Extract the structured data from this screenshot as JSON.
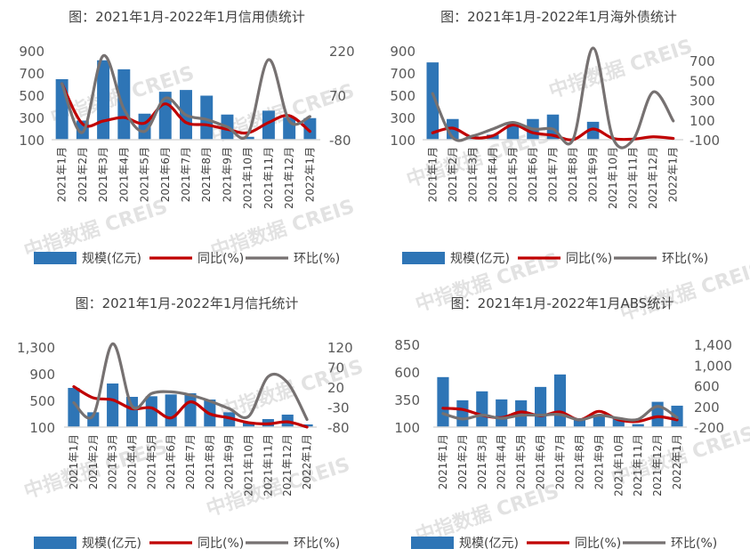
{
  "watermark": "中指数据 CREIS",
  "colors": {
    "bar": "#2e75b6",
    "yoy": "#c00000",
    "mom": "#767171",
    "axis": "#d9d9d9"
  },
  "legend": {
    "bar": "规模(亿元)",
    "yoy": "同比(%)",
    "mom": "环比(%)"
  },
  "chart_data": [
    {
      "type": "bar+line",
      "title": "图：2021年1月-2022年1月信用债统计",
      "categories": [
        "2021年1月",
        "2021年2月",
        "2021年3月",
        "2021年4月",
        "2021年5月",
        "2021年6月",
        "2021年7月",
        "2021年8月",
        "2021年9月",
        "2021年10月",
        "2021年11月",
        "2021年12月",
        "2022年1月"
      ],
      "left_axis": {
        "range": [
          100,
          900
        ],
        "ticks": [
          "100",
          "300",
          "500",
          "700",
          "900"
        ]
      },
      "right_axis": {
        "range": [
          -80,
          220
        ],
        "ticks": [
          "-80",
          "70",
          "220"
        ]
      },
      "series": [
        {
          "name": "规模(亿元)",
          "type": "bar",
          "axis": "left",
          "values": [
            644,
            272,
            814,
            733,
            334,
            531,
            547,
            496,
            326,
            126,
            361,
            299,
            294
          ]
        },
        {
          "name": "同比(%)",
          "type": "line",
          "axis": "right",
          "values": [
            109,
            -27,
            -17,
            -5,
            -24,
            41,
            -22,
            -30,
            -45,
            -57,
            -22,
            1,
            -52
          ]
        },
        {
          "name": "环比(%)",
          "type": "line",
          "axis": "right",
          "values": [
            109,
            -55,
            203,
            23,
            -52,
            60,
            3,
            -12,
            -37,
            -62,
            190,
            -17,
            -2
          ]
        }
      ]
    },
    {
      "type": "bar+line",
      "title": "图：2021年1月-2022年1月海外债统计",
      "categories": [
        "2021年1月",
        "2021年2月",
        "2021年3月",
        "2021年4月",
        "2021年5月",
        "2021年6月",
        "2021年7月",
        "2021年8月",
        "2021年9月",
        "2021年10月",
        "2021年11月",
        "2021年12月",
        "2022年1月"
      ],
      "left_axis": {
        "range": [
          100,
          900
        ],
        "ticks": [
          "100",
          "300",
          "500",
          "700",
          "900"
        ]
      },
      "right_axis": {
        "range": [
          -100,
          800
        ],
        "ticks": [
          "-100",
          "100",
          "300",
          "500",
          "700"
        ]
      },
      "series": [
        {
          "name": "规模(亿元)",
          "type": "bar",
          "axis": "left",
          "values": [
            795,
            286,
            130,
            145,
            253,
            286,
            326,
            100,
            261,
            100,
            100,
            100,
            100
          ]
        },
        {
          "name": "同比(%)",
          "type": "line",
          "axis": "right",
          "values": [
            -30,
            17,
            -78,
            -60,
            49,
            -30,
            -56,
            -100,
            8,
            -87,
            -94,
            -71,
            -87
          ]
        },
        {
          "name": "环比(%)",
          "type": "line",
          "axis": "right",
          "values": [
            367,
            -78,
            -62,
            8,
            75,
            8,
            8,
            -100,
            827,
            -87,
            -100,
            383,
            90
          ]
        }
      ]
    },
    {
      "type": "bar+line",
      "title": "图：2021年1月-2022年1月信托统计",
      "categories": [
        "2021年1月",
        "2021年2月",
        "2021年3月",
        "2021年4月",
        "2021年5月",
        "2021年6月",
        "2021年7月",
        "2021年8月",
        "2021年9月",
        "2021年10月",
        "2021年11月",
        "2021年12月",
        "2022年1月"
      ],
      "left_axis": {
        "range": [
          100,
          1300
        ],
        "ticks": [
          "100",
          "500",
          "900",
          "1,300"
        ]
      },
      "right_axis": {
        "range": [
          -80,
          120
        ],
        "ticks": [
          "-80",
          "-30",
          "20",
          "70",
          "120"
        ]
      },
      "series": [
        {
          "name": "规模(亿元)",
          "type": "bar",
          "axis": "left",
          "values": [
            687,
            322,
            753,
            553,
            562,
            589,
            607,
            513,
            322,
            167,
            220,
            287,
            140
          ]
        },
        {
          "name": "同比(%)",
          "type": "line",
          "axis": "right",
          "values": [
            21,
            -7,
            -12,
            -34,
            -32,
            -57,
            -17,
            -47,
            -57,
            -69,
            -72,
            -67,
            -80
          ]
        },
        {
          "name": "环比(%)",
          "type": "line",
          "axis": "right",
          "values": [
            -19,
            -51,
            128,
            -28,
            4,
            8,
            0,
            -15,
            -34,
            -53,
            46,
            31,
            -61
          ]
        }
      ]
    },
    {
      "type": "bar+line",
      "title": "图：2021年1月-2022年1月ABS统计",
      "categories": [
        "2021年1月",
        "2021年2月",
        "2021年3月",
        "2021年4月",
        "2021年5月",
        "2021年6月",
        "2021年7月",
        "2021年8月",
        "2021年9月",
        "2021年10月",
        "2021年11月",
        "2021年12月",
        "2022年1月"
      ],
      "left_axis": {
        "range": [
          100,
          850
        ],
        "ticks": [
          "100",
          "350",
          "600",
          "850"
        ]
      },
      "right_axis": {
        "range": [
          -200,
          1400
        ],
        "ticks": [
          "-200",
          "200",
          "600",
          "1,000",
          "1,400"
        ]
      },
      "series": [
        {
          "name": "规模(亿元)",
          "type": "bar",
          "axis": "left",
          "values": [
            553,
            343,
            424,
            351,
            343,
            464,
            577,
            181,
            208,
            181,
            127,
            329,
            294
          ]
        },
        {
          "name": "同比(%)",
          "type": "line",
          "axis": "right",
          "values": [
            165,
            140,
            30,
            -17,
            92,
            19,
            92,
            -60,
            104,
            -60,
            -90,
            0,
            -60
          ]
        },
        {
          "name": "环比(%)",
          "type": "line",
          "axis": "right",
          "values": [
            62,
            -43,
            30,
            -30,
            30,
            30,
            43,
            -60,
            30,
            -30,
            -49,
            200,
            -17
          ]
        }
      ]
    }
  ]
}
